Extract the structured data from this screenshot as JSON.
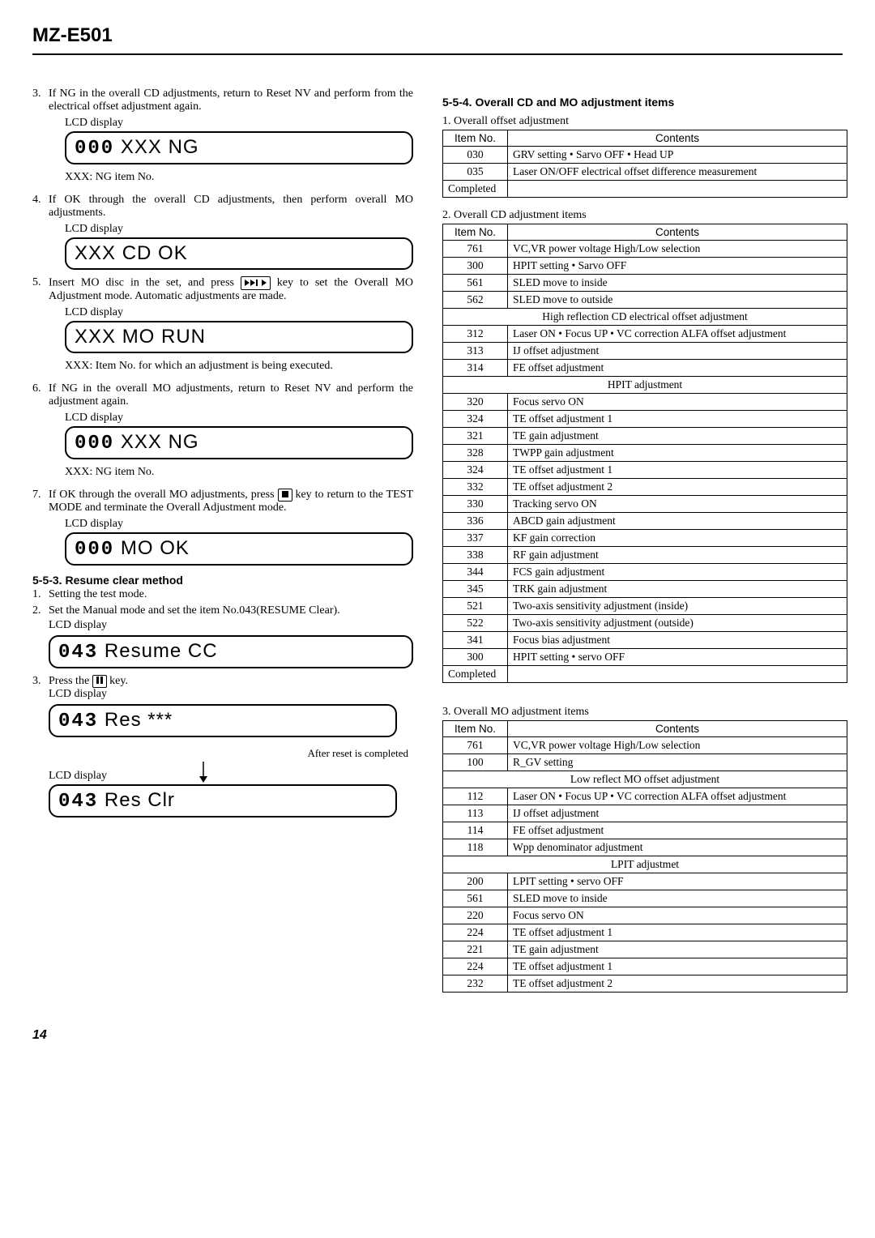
{
  "header": {
    "model": "MZ-E501"
  },
  "left": {
    "steps": [
      {
        "n": "3.",
        "text": "If NG in the overall CD adjustments, return to Reset NV and perform from the electrical offset adjustment again.",
        "lcd_label": "LCD display",
        "lcd_seg": "000",
        "lcd_text": " XXX NG",
        "note": "XXX: NG item No."
      },
      {
        "n": "4.",
        "text": "If OK through the overall CD adjustments, then perform overall MO adjustments.",
        "lcd_label": "LCD display",
        "lcd_text": "XXX CD OK"
      },
      {
        "n": "5.",
        "text_before": "Insert MO disc in the set, and press ",
        "text_after": " key to set the Overall MO Adjustment mode. Automatic adjustments are made.",
        "lcd_label": "LCD display",
        "lcd_text": "XXX MO RUN",
        "note": "XXX: Item No. for which an adjustment is being executed."
      },
      {
        "n": "6.",
        "text": "If NG in the overall MO adjustments, return to Reset NV and perform the adjustment again.",
        "lcd_label": "LCD display",
        "lcd_seg": "000",
        "lcd_text": " XXX NG",
        "note": "XXX: NG item No."
      },
      {
        "n": "7.",
        "text_before": "If OK through the overall MO adjustments, press ",
        "text_after": " key to return to the TEST MODE and terminate the Overall Adjustment mode.",
        "lcd_label": "LCD display",
        "lcd_seg": "000",
        "lcd_text": " MO OK"
      }
    ],
    "resume": {
      "title": "5-5-3. Resume clear method",
      "items": [
        {
          "n": "1.",
          "text": "Setting the test mode."
        },
        {
          "n": "2.",
          "text": "Set the Manual mode and set the item No.043(RESUME Clear).",
          "lcd_label": "LCD display"
        }
      ],
      "lcd1_seg": "043",
      "lcd1_text": " Resume CC",
      "step3_n": "3.",
      "step3_before": "Press the ",
      "step3_after": " key.",
      "step3_lcd_label": "LCD display",
      "lcd2_seg": "043",
      "lcd2_text": " Res ",
      "lcd2_ast": "***",
      "after_reset": "After reset is completed",
      "lcd3_label": "LCD display",
      "lcd3_seg": "043",
      "lcd3_text": " Res Clr"
    }
  },
  "right": {
    "title": "5-5-4.  Overall CD and MO adjustment items",
    "table1_caption": "1.  Overall offset adjustment",
    "th_item": "Item No.",
    "th_contents": "Contents",
    "table1": [
      {
        "no": "030",
        "c": "GRV setting  • Sarvo OFF • Head UP"
      },
      {
        "no": "035",
        "c": "Laser ON/OFF electrical offset difference measurement"
      },
      {
        "no": "Completed",
        "c": ""
      }
    ],
    "table2_caption": "2.  Overall CD adjustment items",
    "table2": [
      {
        "no": "761",
        "c": "VC,VR power voltage High/Low selection"
      },
      {
        "no": "300",
        "c": "HPIT setting • Sarvo OFF"
      },
      {
        "no": "561",
        "c": "SLED move to inside"
      },
      {
        "no": "562",
        "c": "SLED move to outside"
      },
      {
        "span": "High reflection CD electrical offset adjustment"
      },
      {
        "no": "312",
        "c": "Laser ON • Focus UP • VC correction ALFA offset adjustment"
      },
      {
        "no": "313",
        "c": "IJ offset adjustment"
      },
      {
        "no": "314",
        "c": "FE offset adjustment"
      },
      {
        "span": "HPIT adjustment"
      },
      {
        "no": "320",
        "c": "Focus servo ON"
      },
      {
        "no": "324",
        "c": "TE offset adjustment 1"
      },
      {
        "no": "321",
        "c": "TE gain adjustment"
      },
      {
        "no": "328",
        "c": "TWPP gain adjustment"
      },
      {
        "no": "324",
        "c": "TE offset adjustment 1"
      },
      {
        "no": "332",
        "c": "TE offset adjustment 2"
      },
      {
        "no": "330",
        "c": "Tracking servo ON"
      },
      {
        "no": "336",
        "c": "ABCD gain adjustment"
      },
      {
        "no": "337",
        "c": "KF gain correction"
      },
      {
        "no": "338",
        "c": "RF gain adjustment"
      },
      {
        "no": "344",
        "c": "FCS gain adjustment"
      },
      {
        "no": "345",
        "c": "TRK gain adjustment"
      },
      {
        "no": "521",
        "c": "Two-axis sensitivity adjustment (inside)"
      },
      {
        "no": "522",
        "c": "Two-axis sensitivity adjustment (outside)"
      },
      {
        "no": "341",
        "c": "Focus bias adjustment"
      },
      {
        "no": "300",
        "c": "HPIT setting • servo OFF"
      },
      {
        "no": "Completed",
        "c": ""
      }
    ],
    "table3_caption": "3.  Overall MO adjustment items",
    "table3": [
      {
        "no": "761",
        "c": "VC,VR power voltage High/Low selection"
      },
      {
        "no": "100",
        "c": "R_GV setting"
      },
      {
        "span": "Low reflect MO offset adjustment"
      },
      {
        "no": "112",
        "c": "Laser ON • Focus UP • VC correction ALFA offset adjustment"
      },
      {
        "no": "113",
        "c": "IJ offset adjustment"
      },
      {
        "no": "114",
        "c": "FE offset adjustment"
      },
      {
        "no": "118",
        "c": "Wpp denominator adjustment"
      },
      {
        "span": "LPIT adjustmet"
      },
      {
        "no": "200",
        "c": "LPIT setting • servo OFF"
      },
      {
        "no": "561",
        "c": "SLED move to inside"
      },
      {
        "no": "220",
        "c": "Focus servo ON"
      },
      {
        "no": "224",
        "c": "TE offset adjustment 1"
      },
      {
        "no": "221",
        "c": "TE gain adjustment"
      },
      {
        "no": "224",
        "c": "TE offset adjustment 1"
      },
      {
        "no": "232",
        "c": "TE offset adjustment 2"
      }
    ]
  },
  "page": "14"
}
